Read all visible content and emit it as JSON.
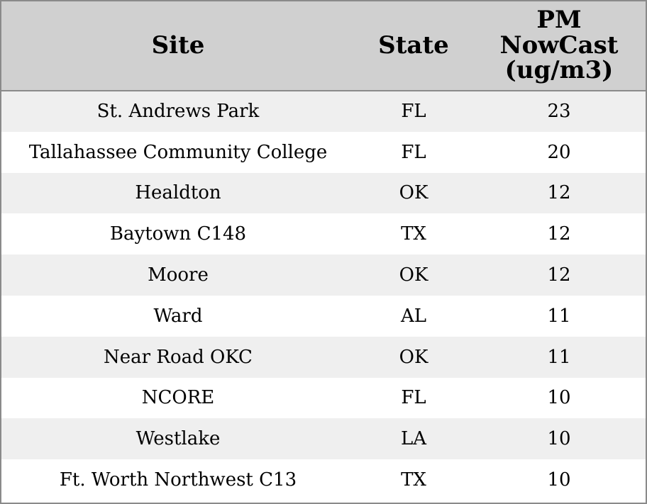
{
  "table": {
    "columns": [
      "Site",
      "State",
      "PM NowCast (ug/m3)"
    ],
    "rows": [
      [
        "St. Andrews Park",
        "FL",
        23
      ],
      [
        "Tallahassee Community College",
        "FL",
        20
      ],
      [
        "Healdton",
        "OK",
        12
      ],
      [
        "Baytown C148",
        "TX",
        12
      ],
      [
        "Moore",
        "OK",
        12
      ],
      [
        "Ward",
        "AL",
        11
      ],
      [
        "Near Road OKC",
        "OK",
        11
      ],
      [
        "NCORE",
        "FL",
        10
      ],
      [
        "Westlake",
        "LA",
        10
      ],
      [
        "Ft. Worth Northwest C13",
        "TX",
        10
      ]
    ]
  }
}
